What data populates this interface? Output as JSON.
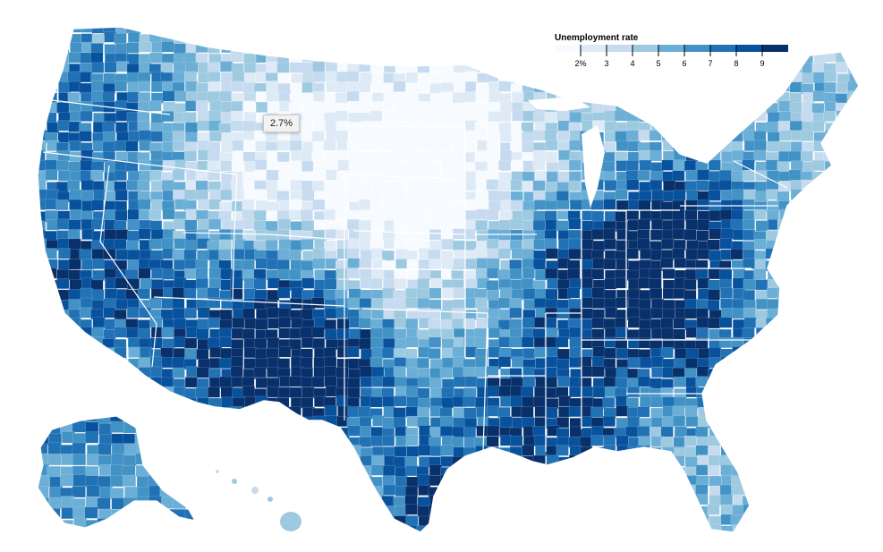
{
  "legend": {
    "title": "Unemployment rate",
    "ticks": [
      "2%",
      "3",
      "4",
      "5",
      "6",
      "7",
      "8",
      "9"
    ],
    "colors": [
      "#f7fbff",
      "#deebf7",
      "#c6dbef",
      "#9ecae1",
      "#6baed6",
      "#4292c6",
      "#2171b5",
      "#08519c",
      "#08306b"
    ]
  },
  "tooltip": {
    "text": "2.7%"
  },
  "colors": {
    "state_border": "#ffffff"
  }
}
